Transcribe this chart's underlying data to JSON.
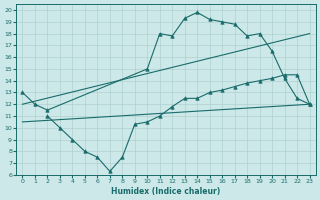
{
  "xlabel": "Humidex (Indice chaleur)",
  "xlim": [
    -0.5,
    23.5
  ],
  "ylim": [
    6,
    20.5
  ],
  "xticks": [
    0,
    1,
    2,
    3,
    4,
    5,
    6,
    7,
    8,
    9,
    10,
    11,
    12,
    13,
    14,
    15,
    16,
    17,
    18,
    19,
    20,
    21,
    22,
    23
  ],
  "yticks": [
    6,
    7,
    8,
    9,
    10,
    11,
    12,
    13,
    14,
    15,
    16,
    17,
    18,
    19,
    20
  ],
  "bg_color": "#cce8e8",
  "grid_color": "#b0d0d0",
  "line_color": "#1a6b6b",
  "line1_x": [
    0,
    1,
    2,
    10,
    11,
    12,
    13,
    14,
    15,
    16,
    17,
    18,
    19,
    20,
    21,
    22,
    23
  ],
  "line1_y": [
    13.0,
    12.0,
    11.5,
    15.0,
    18.0,
    17.8,
    19.3,
    19.8,
    19.2,
    19.0,
    18.8,
    17.8,
    18.0,
    16.5,
    14.2,
    12.5,
    12.0
  ],
  "line2_x": [
    0,
    23
  ],
  "line2_y": [
    12.0,
    18.0
  ],
  "line3_x": [
    0,
    23
  ],
  "line3_y": [
    10.5,
    12.0
  ],
  "line4_x": [
    2,
    3,
    4,
    5,
    6,
    7,
    8,
    9,
    10,
    11,
    12,
    13,
    14,
    15,
    16,
    17,
    18,
    19,
    20,
    21,
    22,
    23
  ],
  "line4_y": [
    11.0,
    10.0,
    9.0,
    8.0,
    7.5,
    6.3,
    7.5,
    10.3,
    10.5,
    11.0,
    11.8,
    12.5,
    12.5,
    13.0,
    13.2,
    13.5,
    13.8,
    14.0,
    14.2,
    14.5,
    14.5,
    12.0
  ]
}
